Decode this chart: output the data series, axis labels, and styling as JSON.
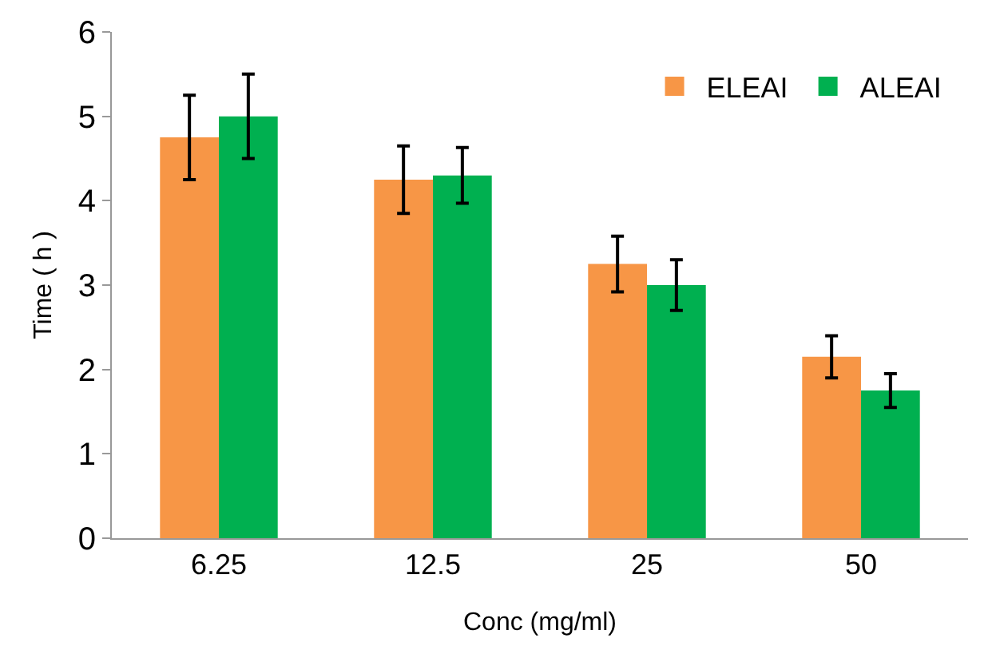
{
  "chart_data": {
    "type": "bar",
    "xlabel": "Conc (mg/ml)",
    "ylabel": "Time ( h )",
    "categories": [
      "6.25",
      "12.5",
      "25",
      "50"
    ],
    "series": [
      {
        "name": "ELEAI",
        "color": "#f79646",
        "values": [
          4.75,
          4.25,
          3.25,
          2.15
        ],
        "errors": [
          0.5,
          0.4,
          0.33,
          0.25
        ]
      },
      {
        "name": "ALEAI",
        "color": "#00b050",
        "values": [
          5.0,
          4.3,
          3.0,
          1.75
        ],
        "errors": [
          0.5,
          0.33,
          0.3,
          0.2
        ]
      }
    ],
    "ylim": [
      0,
      6
    ],
    "yticks": [
      0,
      1,
      2,
      3,
      4,
      5,
      6
    ],
    "grid": false,
    "legend": "top right"
  }
}
